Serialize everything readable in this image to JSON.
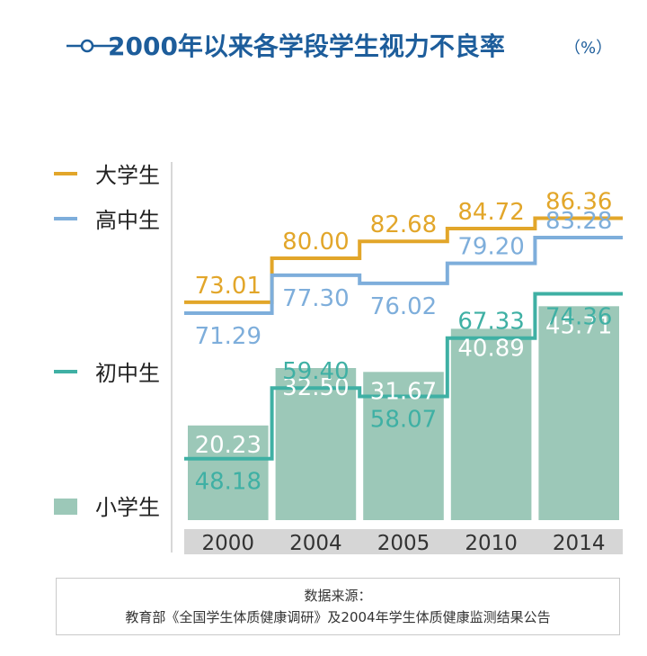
{
  "title": "2000年以来各学段学生视力不良率",
  "unit": "（%）",
  "colors": {
    "title": "#1d5d9b",
    "university": "#e2a62a",
    "high_school": "#7eaedb",
    "middle_school": "#3fb0a4",
    "primary_school": "#9cc8b8",
    "axis_band": "#d6d6d6",
    "axis_text": "#333333"
  },
  "legend": [
    {
      "key": "university",
      "label": "大学生",
      "kind": "line"
    },
    {
      "key": "high_school",
      "label": "高中生",
      "kind": "line"
    },
    {
      "key": "middle_school",
      "label": "初中生",
      "kind": "line"
    },
    {
      "key": "primary_school",
      "label": "小学生",
      "kind": "bar"
    }
  ],
  "chart_data": {
    "type": "bar",
    "categories": [
      "2000",
      "2004",
      "2005",
      "2010",
      "2014"
    ],
    "series": [
      {
        "key": "university",
        "name": "大学生",
        "type": "step-line",
        "values": [
          73.01,
          80.0,
          82.68,
          84.72,
          86.36
        ],
        "labels": [
          "73.01",
          "80.00",
          "82.68",
          "84.72",
          "86.36"
        ]
      },
      {
        "key": "high_school",
        "name": "高中生",
        "type": "step-line",
        "values": [
          71.29,
          77.3,
          76.02,
          79.2,
          83.28
        ],
        "labels": [
          "71.29",
          "77.30",
          "76.02",
          "79.20",
          "83.28"
        ]
      },
      {
        "key": "middle_school",
        "name": "初中生",
        "type": "step-line",
        "values": [
          48.18,
          59.4,
          58.07,
          67.33,
          74.36
        ],
        "labels": [
          "48.18",
          "59.40",
          "58.07",
          "67.33",
          "74.36"
        ]
      },
      {
        "key": "primary_school",
        "name": "小学生",
        "type": "bar",
        "values": [
          20.23,
          32.5,
          31.67,
          40.89,
          45.71
        ],
        "labels": [
          "20.23",
          "32.50",
          "31.67",
          "40.89",
          "45.71"
        ]
      }
    ],
    "ylim": [
      0,
      100
    ],
    "grid": false,
    "legend_position": "left"
  },
  "source": {
    "heading": "数据来源：",
    "text": "教育部《全国学生体质健康调研》及2004年学生体质健康监测结果公告"
  }
}
